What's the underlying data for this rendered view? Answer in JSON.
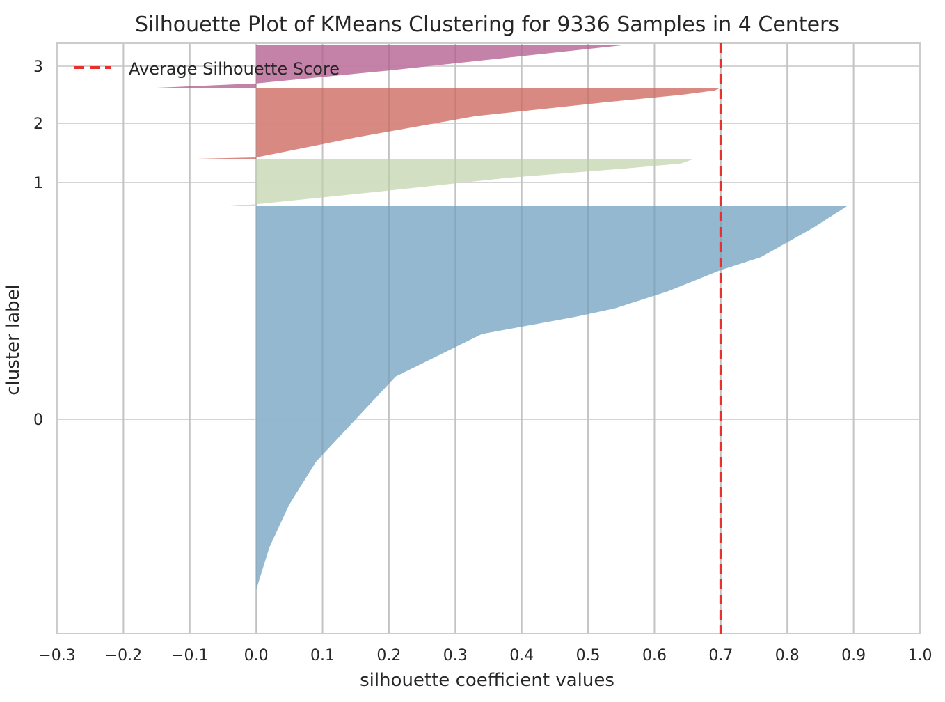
{
  "chart_data": {
    "type": "area",
    "title": "Silhouette Plot of KMeans Clustering for 9336 Samples in 4 Centers",
    "xlabel": "silhouette coefficient values",
    "ylabel": "cluster label",
    "xlim": [
      -0.3,
      1.0
    ],
    "xticks": [
      -0.3,
      -0.2,
      -0.1,
      0.0,
      0.1,
      0.2,
      0.3,
      0.4,
      0.5,
      0.6,
      0.7,
      0.8,
      0.9,
      1.0
    ],
    "xtick_labels": [
      "−0.3",
      "−0.2",
      "−0.1",
      "0.0",
      "0.1",
      "0.2",
      "0.3",
      "0.4",
      "0.5",
      "0.6",
      "0.7",
      "0.8",
      "0.9",
      "1.0"
    ],
    "grid": true,
    "legend_position": "top-left",
    "average_silhouette_score": 0.7,
    "average_line": {
      "label": "Average Silhouette Score",
      "color": "#e8302f",
      "style": "dashed"
    },
    "clusters": [
      {
        "label": "0",
        "color": "#8eb4cc",
        "profile": [
          [
            0.0,
            0.0
          ],
          [
            0.1,
            0.0
          ],
          [
            0.2,
            0.02
          ],
          [
            0.3,
            0.05
          ],
          [
            0.4,
            0.09
          ],
          [
            0.5,
            0.15
          ],
          [
            0.6,
            0.21
          ],
          [
            0.7,
            0.34
          ],
          [
            0.74,
            0.48
          ],
          [
            0.76,
            0.54
          ],
          [
            0.8,
            0.62
          ],
          [
            0.85,
            0.7
          ],
          [
            0.88,
            0.76
          ],
          [
            0.95,
            0.84
          ],
          [
            1.0,
            0.89
          ]
        ]
      },
      {
        "label": "1",
        "color": "#d1ddbf",
        "profile": [
          [
            0.0,
            -0.04
          ],
          [
            0.04,
            0.0
          ],
          [
            0.3,
            0.18
          ],
          [
            0.6,
            0.38
          ],
          [
            0.8,
            0.56
          ],
          [
            0.9,
            0.64
          ],
          [
            1.0,
            0.66
          ]
        ]
      },
      {
        "label": "2",
        "color": "#d6847b",
        "profile": [
          [
            0.0,
            -0.09
          ],
          [
            0.02,
            0.0
          ],
          [
            0.3,
            0.15
          ],
          [
            0.6,
            0.33
          ],
          [
            0.8,
            0.53
          ],
          [
            0.9,
            0.64
          ],
          [
            0.96,
            0.69
          ],
          [
            1.0,
            0.7
          ]
        ]
      },
      {
        "label": "3",
        "color": "#c27ba4",
        "profile": [
          [
            0.0,
            -0.15
          ],
          [
            0.1,
            0.0
          ],
          [
            0.4,
            0.2
          ],
          [
            0.7,
            0.38
          ],
          [
            0.9,
            0.5
          ],
          [
            1.0,
            0.56
          ]
        ]
      }
    ]
  }
}
